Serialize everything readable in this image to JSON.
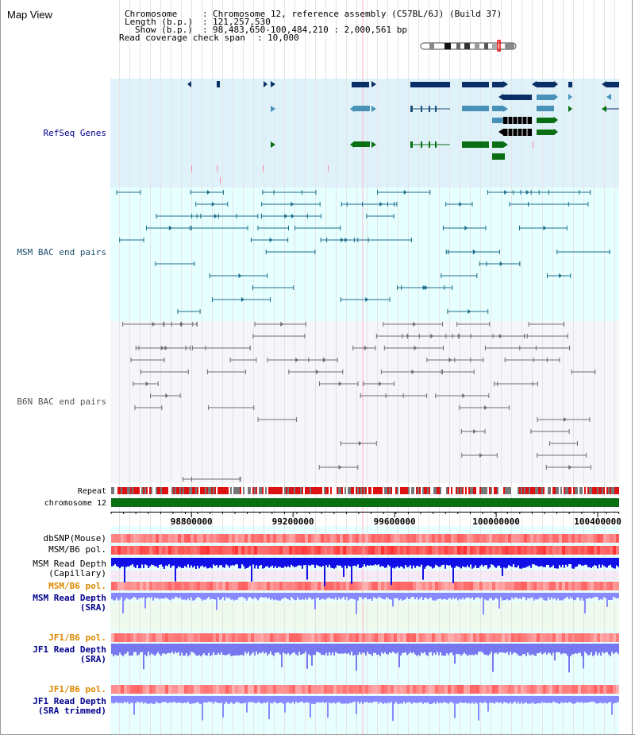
{
  "app_title": "Map View",
  "header": {
    "rows": [
      {
        "label": "Chromosome",
        "value": "Chromosome 12, reference assembly (C57BL/6J) (Build 37)"
      },
      {
        "label": "Length (b.p.)",
        "value": "121,257,530"
      },
      {
        "label": "Show (b.p.)",
        "value": "98,483,650-100,484,210 : 2,000,561 bp"
      }
    ],
    "span_label": "Read coverage check span",
    "span_value": "10,000",
    "separator": ":"
  },
  "view": {
    "start": 98483650,
    "end": 100484210,
    "chromosome": "chromosome 12"
  },
  "axis": {
    "ticks": [
      98800000,
      99200000,
      99600000,
      100000000,
      100400000
    ]
  },
  "tracks": {
    "refseq": "RefSeq Genes",
    "msm_bac": "MSM BAC end pairs",
    "b6n_bac": "B6N BAC end pairs",
    "repeat": "Repeat",
    "chromosome": "chromosome 12",
    "dbsnp": "dbSNP(Mouse)",
    "msm_b6_pol": "MSM/B6 pol.",
    "msm_depth_cap_1": "MSM Read Depth",
    "msm_depth_cap_2": "(Capillary)",
    "msm_b6_pol_2": "MSM/B6 pol.",
    "msm_depth_sra_1": "MSM Read Depth",
    "msm_depth_sra_2": "(SRA)",
    "jf1_b6_pol": "JF1/B6 pol.",
    "jf1_depth_sra_1": "JF1 Read Depth",
    "jf1_depth_sra_2": "(SRA)",
    "jf1_b6_pol_2": "JF1/B6 pol.",
    "jf1_depth_trim_1": "JF1 Read Depth",
    "jf1_depth_trim_2": "(SRA trimmed)"
  },
  "colors": {
    "refseq_bg": "#dff2fa",
    "msm_bg": "#e6ffff",
    "b6n_bg": "#f5f5fa",
    "gene_dark": "#0a2f66",
    "gene_mid": "#4892b8",
    "gene_green": "#0a6e12",
    "msm_line": "#1c6e8c",
    "b6n_line": "#6e6e6e",
    "chrom_bar": "#0a6e12",
    "label_blue": "#00008b",
    "label_orange": "#dd8800",
    "label_teal": "#1b4f6b",
    "depth_dark": "#1010e6",
    "depth_light": "#8888ff"
  }
}
